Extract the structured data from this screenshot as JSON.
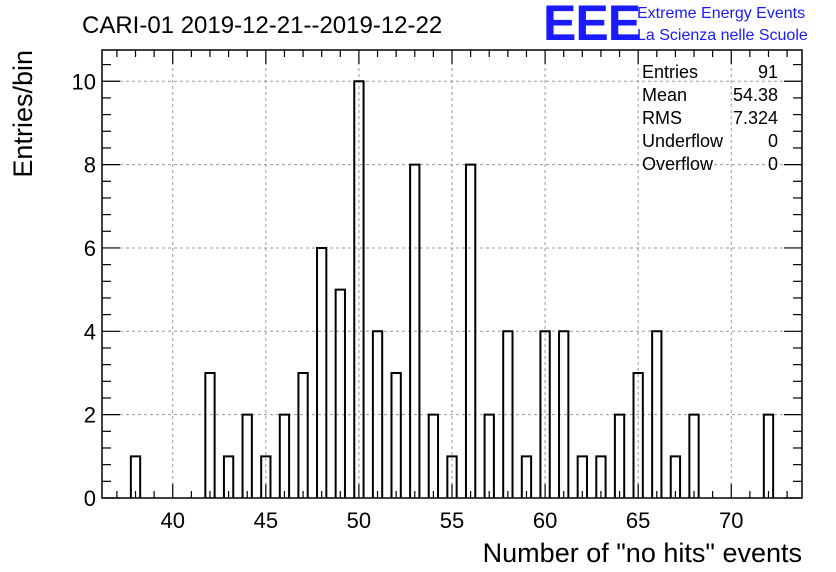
{
  "title": "CARI-01 2019-12-21--2019-12-22",
  "logo": {
    "mark": "EEE",
    "line1": "Extreme Energy Events",
    "line2": "La Scienza nelle Scuole",
    "color": "#1a1aff"
  },
  "stats": [
    {
      "label": "Entries",
      "value": "91"
    },
    {
      "label": "Mean",
      "value": "54.38"
    },
    {
      "label": "RMS",
      "value": "7.324"
    },
    {
      "label": "Underflow",
      "value": "0"
    },
    {
      "label": "Overflow",
      "value": "0"
    }
  ],
  "chart_data": {
    "type": "bar",
    "histogram": true,
    "xlabel": "Number of \"no hits\" events",
    "ylabel": "Entries/bin",
    "xlim": [
      36.2,
      73.8
    ],
    "ylim": [
      0,
      10.75
    ],
    "grid": true,
    "xticks": [
      40,
      45,
      50,
      55,
      60,
      65,
      70
    ],
    "yticks": [
      0,
      2,
      4,
      6,
      8,
      10
    ],
    "bin_width": 0.5,
    "x": [
      38,
      42,
      43,
      44,
      45,
      46,
      47,
      48,
      49,
      50,
      51,
      52,
      53,
      54,
      55,
      56,
      57,
      58,
      59,
      60,
      61,
      62,
      63,
      64,
      65,
      66,
      67,
      68,
      72
    ],
    "values": [
      1,
      3,
      1,
      2,
      1,
      2,
      3,
      6,
      5,
      10,
      4,
      3,
      8,
      2,
      1,
      8,
      2,
      4,
      1,
      4,
      4,
      1,
      1,
      2,
      3,
      4,
      1,
      2,
      2
    ]
  }
}
